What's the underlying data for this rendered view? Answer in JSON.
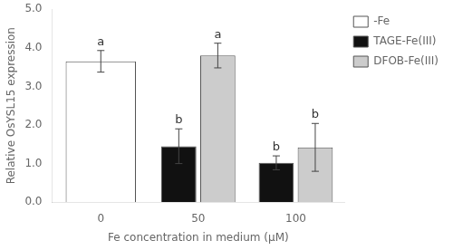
{
  "chart_data": {
    "type": "bar",
    "categories": [
      "0",
      "50",
      "100"
    ],
    "series": [
      {
        "name": "-Fe",
        "color": "#ffffff",
        "values": [
          3.65,
          null,
          null
        ],
        "errors": [
          0.28,
          null,
          null
        ],
        "letters": [
          "a",
          null,
          null
        ]
      },
      {
        "name": "TAGE-Fe(III)",
        "color": "#111111",
        "values": [
          null,
          1.45,
          1.02
        ],
        "errors": [
          null,
          0.45,
          0.18
        ],
        "letters": [
          null,
          "b",
          "b"
        ]
      },
      {
        "name": "DFOB-Fe(III)",
        "color": "#cccccc",
        "values": [
          null,
          3.8,
          1.42
        ],
        "errors": [
          null,
          0.32,
          0.62
        ],
        "letters": [
          null,
          "a",
          "b"
        ]
      }
    ],
    "xlabel": "Fe concentration in medium (μM)",
    "ylabel": "Relative OsYSL15 expression",
    "ylim": [
      0,
      5.0
    ],
    "yticks": [
      {
        "value": 0.0,
        "label": "0.0"
      },
      {
        "value": 1.0,
        "label": "1.0"
      },
      {
        "value": 2.0,
        "label": "2.0"
      },
      {
        "value": 3.0,
        "label": "3.0"
      },
      {
        "value": 4.0,
        "label": "4.0"
      },
      {
        "value": 5.0,
        "label": "5.0"
      }
    ],
    "grid": false,
    "legend": "right"
  }
}
